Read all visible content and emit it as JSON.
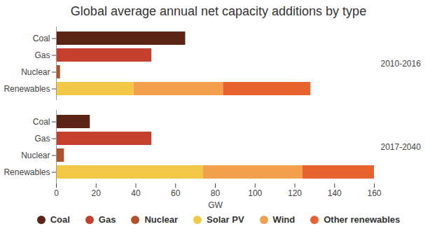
{
  "chart_data": {
    "type": "bar",
    "orientation": "horizontal",
    "stacked": true,
    "title": "Global average annual net capacity additions by type",
    "xlabel": "GW",
    "categories": [
      "Coal",
      "Gas",
      "Nuclear",
      "Renewables"
    ],
    "facets": [
      "2010-2016",
      "2017-2040"
    ],
    "series": [
      {
        "name": "Coal",
        "color": "#5b2414",
        "values": [
          [
            65,
            null,
            null,
            null
          ],
          [
            17,
            null,
            null,
            null
          ]
        ]
      },
      {
        "name": "Gas",
        "color": "#c4402c",
        "values": [
          [
            null,
            48,
            null,
            null
          ],
          [
            null,
            48,
            null,
            null
          ]
        ]
      },
      {
        "name": "Nuclear",
        "color": "#b0522a",
        "values": [
          [
            null,
            null,
            2,
            null
          ],
          [
            null,
            null,
            4,
            null
          ]
        ]
      },
      {
        "name": "Solar PV",
        "color": "#f2c846",
        "values": [
          [
            null,
            null,
            null,
            39
          ],
          [
            null,
            null,
            null,
            74
          ]
        ]
      },
      {
        "name": "Wind",
        "color": "#f2a04c",
        "values": [
          [
            null,
            null,
            null,
            45
          ],
          [
            null,
            null,
            null,
            50
          ]
        ]
      },
      {
        "name": "Other renewables",
        "color": "#e8622f",
        "values": [
          [
            null,
            null,
            null,
            44
          ],
          [
            null,
            null,
            null,
            36
          ]
        ]
      }
    ],
    "xlim": [
      0,
      160
    ],
    "xticks": [
      0,
      20,
      40,
      60,
      80,
      100,
      120,
      140,
      160
    ],
    "grid": false,
    "legend": "bottom"
  }
}
